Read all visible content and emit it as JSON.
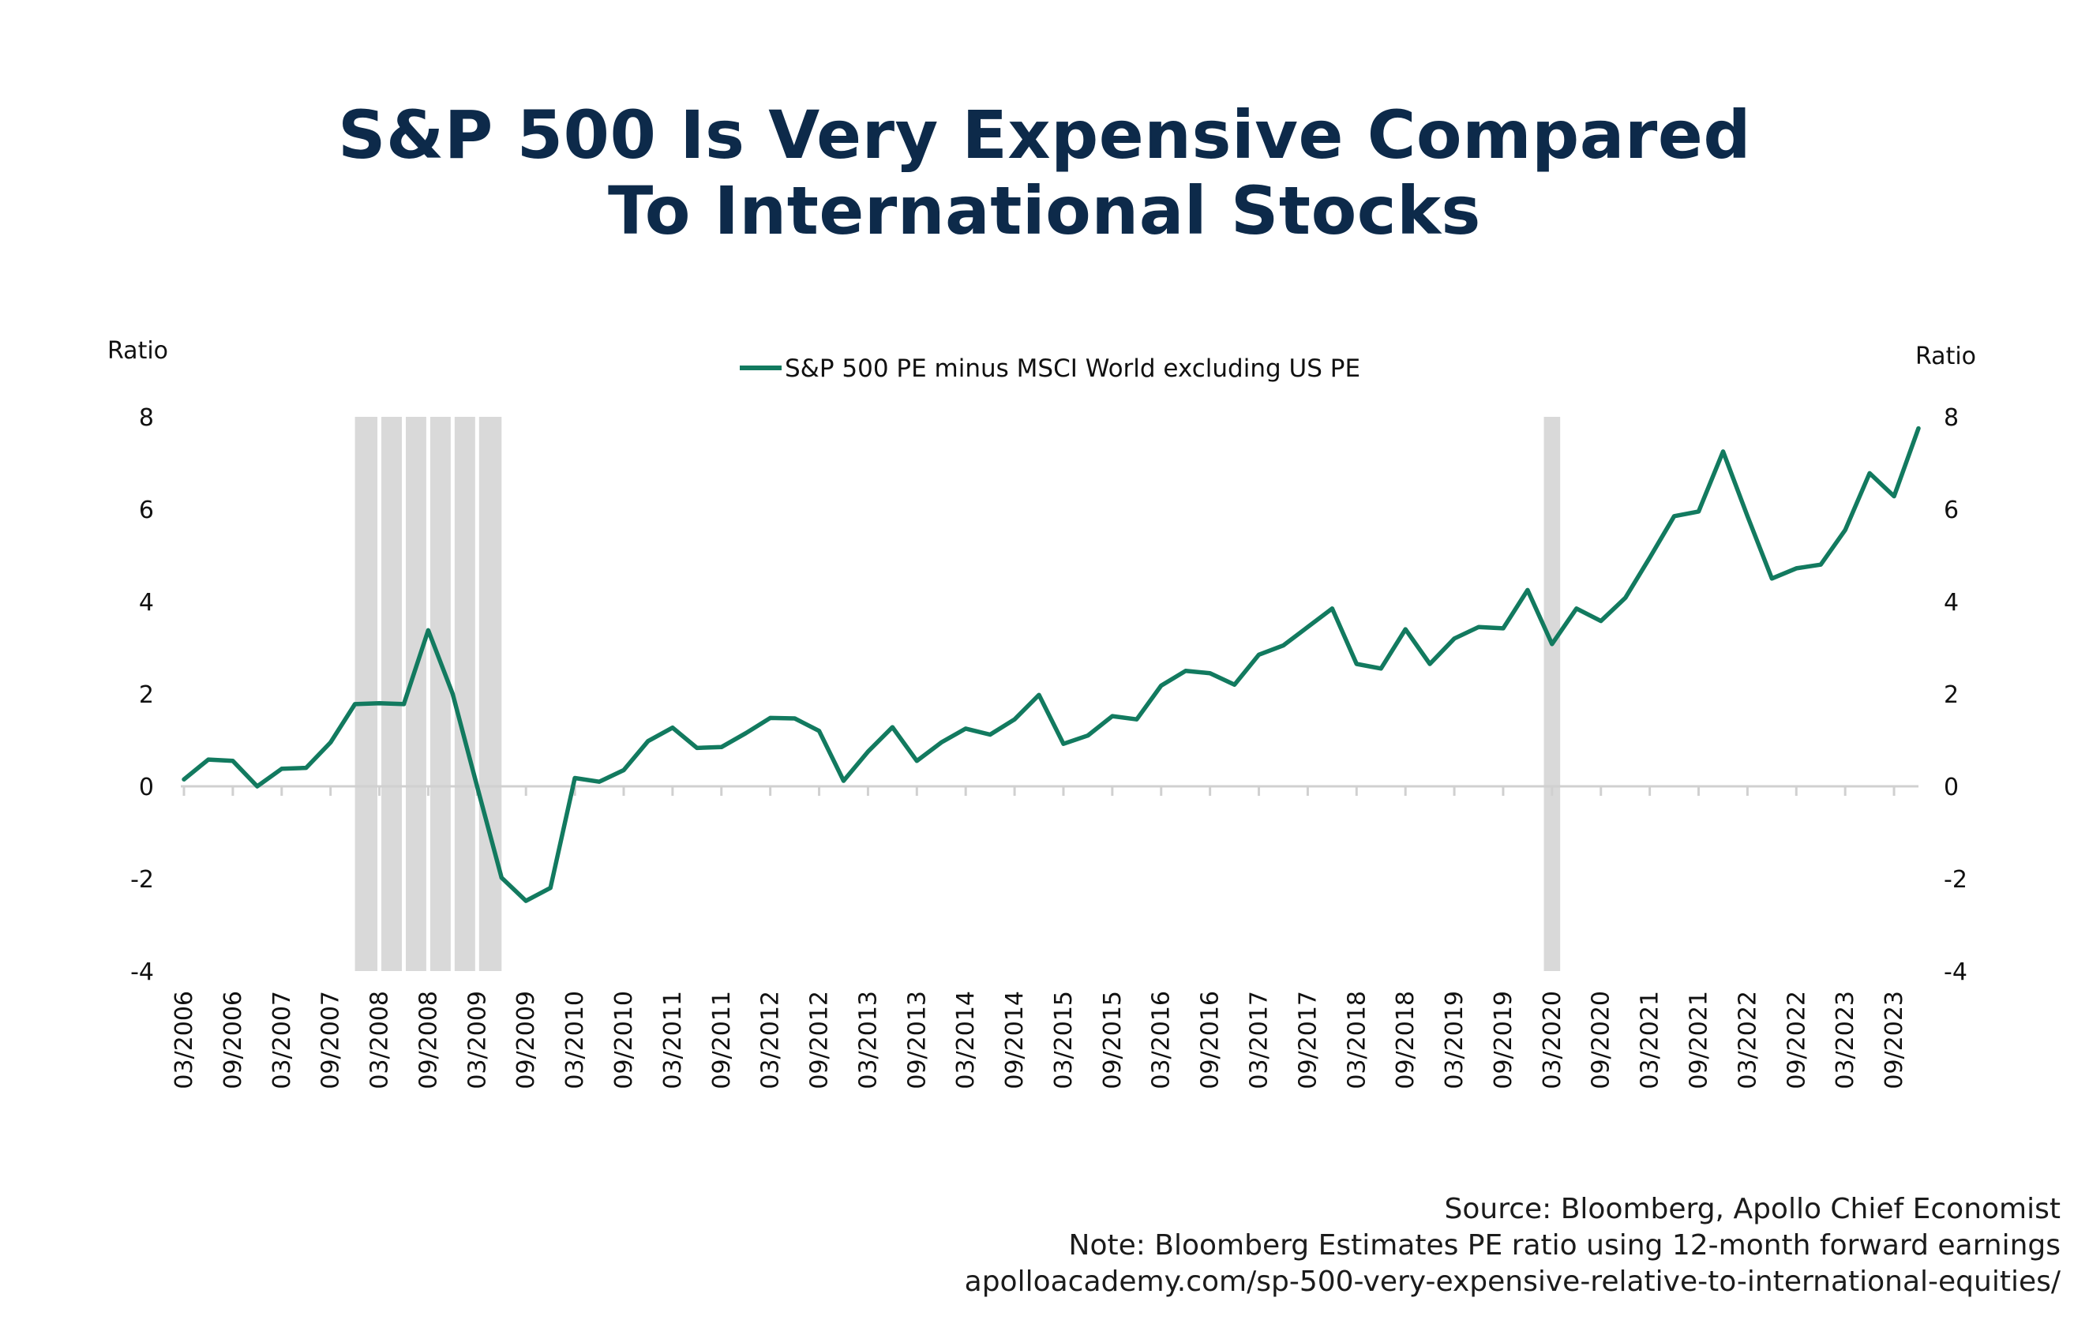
{
  "title_line1": "S&P 500 Is Very Expensive Compared",
  "title_line2": "To International Stocks",
  "footer": {
    "source": "Source: Bloomberg, Apollo Chief Economist",
    "note": "Note: Bloomberg Estimates PE ratio using 12-month forward earnings",
    "url": "apolloacademy.com/sp-500-very-expensive-relative-to-international-equities/"
  },
  "colors": {
    "line": "#127a5f",
    "recession": "#d9d9d9",
    "title": "#0d2a4a",
    "axis": "#d0d0d0"
  },
  "chart_data": {
    "type": "line",
    "ylabel_left": "Ratio",
    "ylabel_right": "Ratio",
    "ylim": [
      -4,
      8
    ],
    "yticks": [
      8,
      6,
      4,
      2,
      0,
      -2,
      -4
    ],
    "legend_position": "top-center",
    "grid": false,
    "x_tick_labels": [
      "03/2006",
      "09/2006",
      "03/2007",
      "09/2007",
      "03/2008",
      "09/2008",
      "03/2009",
      "09/2009",
      "03/2010",
      "09/2010",
      "03/2011",
      "09/2011",
      "03/2012",
      "09/2012",
      "03/2013",
      "09/2013",
      "03/2014",
      "09/2014",
      "03/2015",
      "09/2015",
      "03/2016",
      "09/2016",
      "03/2017",
      "09/2017",
      "03/2018",
      "09/2018",
      "03/2019",
      "09/2019",
      "03/2020",
      "09/2020",
      "03/2021",
      "09/2021",
      "03/2022",
      "09/2022",
      "03/2023",
      "09/2023"
    ],
    "x_start": "03/2006",
    "x_end": "12/2023",
    "recession_bands": [
      {
        "start": "12/2007",
        "end": "06/2009"
      },
      {
        "start": "02/2020",
        "end": "04/2020"
      }
    ],
    "series": [
      {
        "name": "S&P 500 PE minus MSCI World excluding US PE",
        "x": [
          "03/2006",
          "06/2006",
          "09/2006",
          "12/2006",
          "03/2007",
          "06/2007",
          "09/2007",
          "12/2007",
          "03/2008",
          "06/2008",
          "09/2008",
          "12/2008",
          "03/2009",
          "06/2009",
          "09/2009",
          "12/2009",
          "03/2010",
          "06/2010",
          "09/2010",
          "12/2010",
          "03/2011",
          "06/2011",
          "09/2011",
          "12/2011",
          "03/2012",
          "06/2012",
          "09/2012",
          "12/2012",
          "03/2013",
          "06/2013",
          "09/2013",
          "12/2013",
          "03/2014",
          "06/2014",
          "09/2014",
          "12/2014",
          "03/2015",
          "06/2015",
          "09/2015",
          "12/2015",
          "03/2016",
          "06/2016",
          "09/2016",
          "12/2016",
          "03/2017",
          "06/2017",
          "09/2017",
          "12/2017",
          "03/2018",
          "06/2018",
          "09/2018",
          "12/2018",
          "03/2019",
          "06/2019",
          "09/2019",
          "12/2019",
          "03/2020",
          "06/2020",
          "09/2020",
          "12/2020",
          "03/2021",
          "06/2021",
          "09/2021",
          "12/2021",
          "03/2022",
          "06/2022",
          "09/2022",
          "12/2022",
          "03/2023",
          "06/2023",
          "09/2023",
          "12/2023"
        ],
        "values": [
          0.15,
          0.58,
          0.55,
          0.0,
          0.38,
          0.4,
          0.95,
          1.78,
          1.8,
          1.78,
          3.38,
          2.0,
          0.0,
          -1.98,
          -2.48,
          -2.2,
          0.18,
          0.1,
          0.35,
          0.98,
          1.27,
          0.83,
          0.85,
          1.15,
          1.48,
          1.47,
          1.2,
          0.12,
          0.75,
          1.28,
          0.55,
          0.95,
          1.25,
          1.12,
          1.45,
          1.98,
          0.92,
          1.1,
          1.52,
          1.45,
          2.18,
          2.5,
          2.45,
          2.2,
          2.85,
          3.05,
          3.45,
          3.85,
          2.65,
          2.55,
          3.4,
          2.65,
          3.2,
          3.45,
          3.42,
          4.25,
          3.08,
          3.85,
          3.58,
          4.08,
          4.95,
          5.85,
          5.95,
          7.25,
          5.85,
          4.5,
          4.72,
          4.8,
          5.55,
          6.78,
          6.28,
          7.75
        ]
      }
    ]
  }
}
